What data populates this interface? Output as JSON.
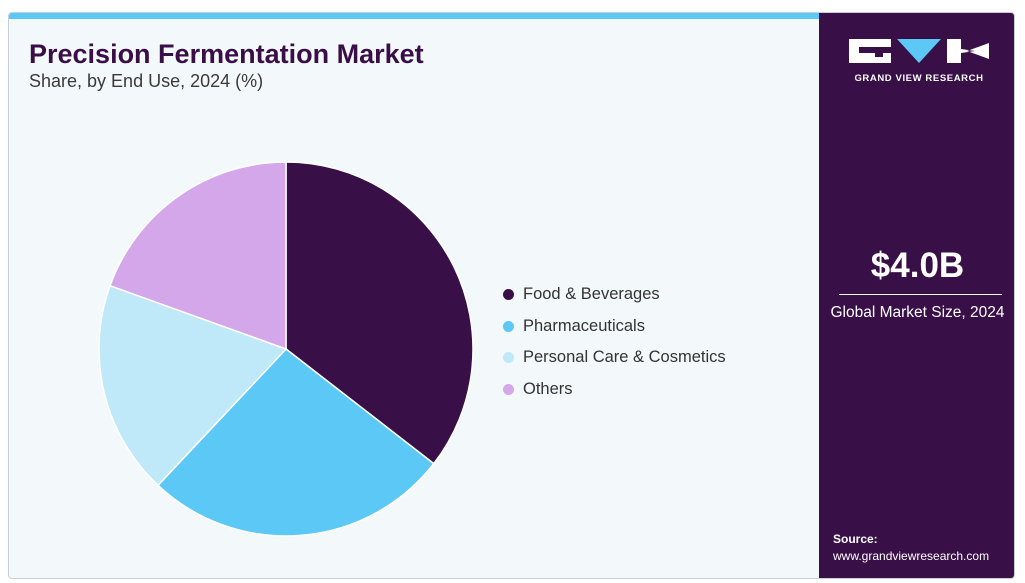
{
  "title": "Precision Fermentation Market",
  "subtitle": "Share, by End Use, 2024 (%)",
  "chart_data": {
    "type": "pie",
    "title": "Precision Fermentation Market",
    "subtitle": "Share, by End Use, 2024 (%)",
    "categories": [
      "Food & Beverages",
      "Pharmaceuticals",
      "Personal Care & Cosmetics",
      "Others"
    ],
    "values": [
      35.5,
      26.5,
      18.5,
      19.5
    ],
    "colors": [
      "#380f46",
      "#5bc8f5",
      "#bfe9f8",
      "#d4a6ea"
    ],
    "legend_position": "right",
    "start_angle_deg": 0,
    "direction": "clockwise"
  },
  "legend": [
    {
      "label": "Food & Beverages",
      "color": "#380f46"
    },
    {
      "label": "Pharmaceuticals",
      "color": "#5bc8f5"
    },
    {
      "label": "Personal Care & Cosmetics",
      "color": "#bfe9f8"
    },
    {
      "label": "Others",
      "color": "#d4a6ea"
    }
  ],
  "sidebar": {
    "logo_text": "GRAND VIEW RESEARCH",
    "market_value": "$4.0B",
    "market_label": "Global Market Size, 2024",
    "source_title": "Source:",
    "source_url": "www.grandviewresearch.com"
  },
  "colors": {
    "accent_bar": "#5bc8f5",
    "panel": "#380f46",
    "title": "#3a0f48"
  }
}
